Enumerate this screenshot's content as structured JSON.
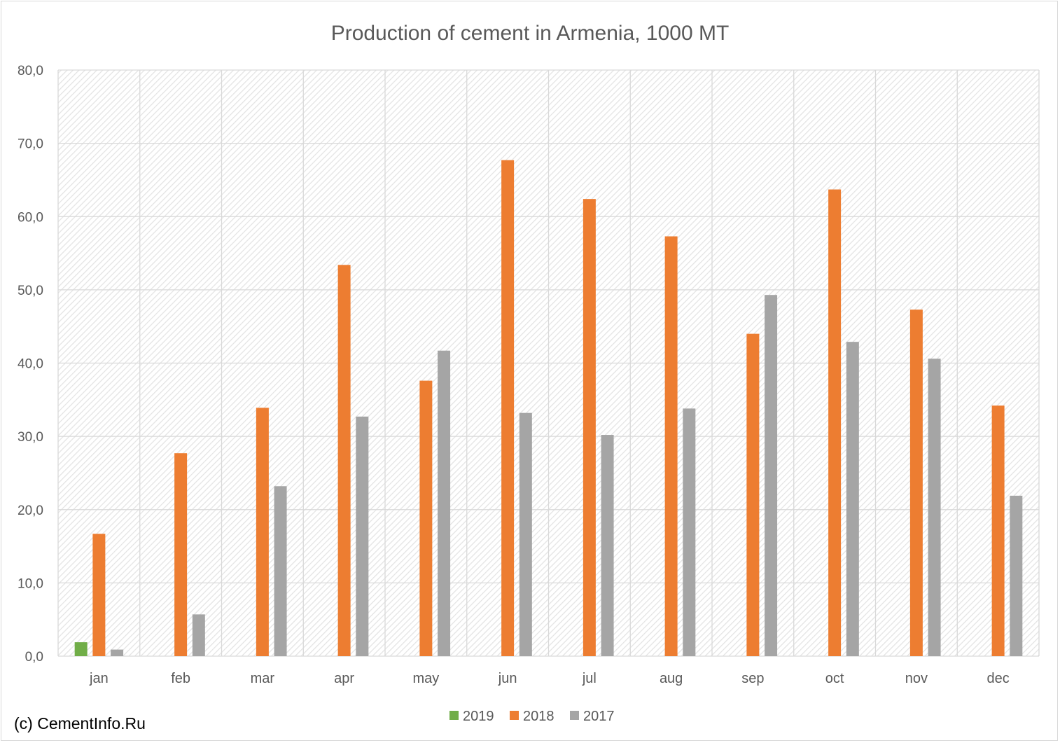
{
  "chart_data": {
    "type": "bar",
    "title": "Production of cement in Armenia, 1000 MT",
    "xlabel": "",
    "ylabel": "",
    "ylim": [
      0,
      80
    ],
    "yticks": [
      "0,0",
      "10,0",
      "20,0",
      "30,0",
      "40,0",
      "50,0",
      "60,0",
      "70,0",
      "80,0"
    ],
    "categories": [
      "jan",
      "feb",
      "mar",
      "apr",
      "may",
      "jun",
      "jul",
      "aug",
      "sep",
      "oct",
      "nov",
      "dec"
    ],
    "series": [
      {
        "name": "2019",
        "color": "#70ad47",
        "values": [
          1.9,
          null,
          null,
          null,
          null,
          null,
          null,
          null,
          null,
          null,
          null,
          null
        ]
      },
      {
        "name": "2018",
        "color": "#ed7d31",
        "values": [
          16.7,
          27.7,
          33.9,
          53.4,
          37.6,
          67.7,
          62.4,
          57.3,
          44.0,
          63.7,
          47.3,
          34.2
        ]
      },
      {
        "name": "2017",
        "color": "#a5a5a5",
        "values": [
          0.9,
          5.7,
          23.2,
          32.7,
          41.7,
          33.2,
          30.2,
          33.8,
          49.3,
          42.9,
          40.6,
          21.9
        ]
      }
    ],
    "grid": true,
    "legend": "bottom"
  },
  "credit": "(c) CementInfo.Ru"
}
